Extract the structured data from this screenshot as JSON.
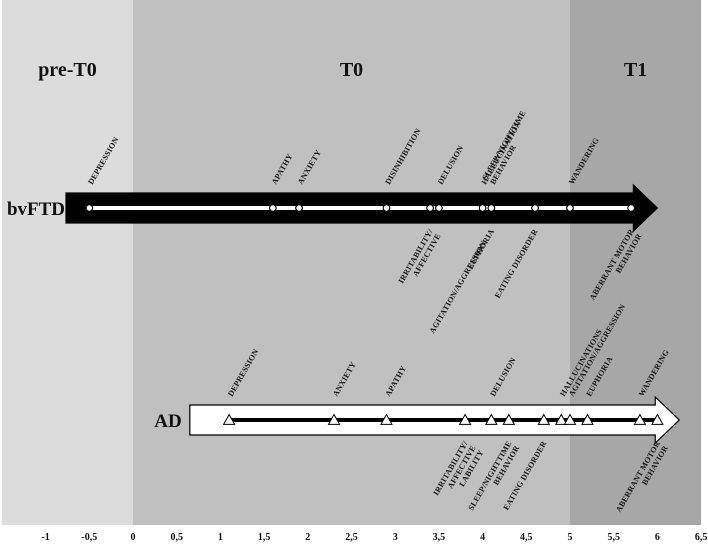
{
  "phases": [
    {
      "label": "pre-T0",
      "from": -1.5,
      "to": 0,
      "color": "#dcdcdc"
    },
    {
      "label": "T0",
      "from": 0,
      "to": 5,
      "color": "#c0c0c0"
    },
    {
      "label": "T1",
      "from": 5,
      "to": 6.5,
      "color": "#a7a7a7"
    }
  ],
  "axis": {
    "ticks": [
      -1,
      -0.5,
      0,
      0.5,
      1,
      1.5,
      2,
      2.5,
      3,
      3.5,
      4,
      4.5,
      5,
      5.5,
      6,
      6.5
    ],
    "tick_labels": [
      "-1",
      "-0,5",
      "0",
      "0,5",
      "1",
      "1,5",
      "2",
      "2,5",
      "3",
      "3,5",
      "4",
      "4,5",
      "5",
      "5,5",
      "6",
      "6,5"
    ]
  },
  "timelines": [
    {
      "name": "bvFTD",
      "arrow_fill": "#000000",
      "line_color": "#ffffff",
      "marker": "circle",
      "start": 0.75,
      "end": 6.0,
      "line_from": -0.5,
      "line_to": 5.7,
      "events": [
        {
          "x": -0.5,
          "label": [
            "DEPRESSION"
          ],
          "side": "above"
        },
        {
          "x": 1.6,
          "label": [
            "APATHY"
          ],
          "side": "above"
        },
        {
          "x": 1.9,
          "label": [
            "ANXIETY"
          ],
          "side": "above"
        },
        {
          "x": 2.9,
          "label": [
            "DISINHIBITION"
          ],
          "side": "above"
        },
        {
          "x": 3.4,
          "label": [
            "IRRITABILITY/",
            "AFFECTIVE"
          ],
          "side": "below"
        },
        {
          "x": 3.5,
          "label": [
            "DELUSION"
          ],
          "side": "above"
        },
        {
          "x": 4.0,
          "label": [
            "HALLUCINATION"
          ],
          "side": "above"
        },
        {
          "x": 4.1,
          "label": [
            "SLEEP/NIGHTTIME",
            "BEHAVIOR"
          ],
          "side": "above"
        },
        {
          "x": 4.1,
          "label": [
            "EUPHORIA"
          ],
          "side": "below"
        },
        {
          "x": 4.1,
          "label": [
            "AGITATION/AGGRESSION"
          ],
          "side": "below"
        },
        {
          "x": 4.6,
          "label": [
            "EATING DISORDER"
          ],
          "side": "below"
        },
        {
          "x": 5.0,
          "label": [
            "WANDERING"
          ],
          "side": "above"
        },
        {
          "x": 5.7,
          "label": [
            "ABERRANT MOTOR",
            "BEHAVIOR"
          ],
          "side": "below"
        }
      ]
    },
    {
      "name": "AD",
      "arrow_fill": "#ffffff",
      "line_color": "#000000",
      "marker": "triangle",
      "start": 0.65,
      "end": 6.25,
      "line_from": 1.1,
      "line_to": 6.0,
      "events": [
        {
          "x": 1.1,
          "label": [
            "DEPRESSION"
          ],
          "side": "above"
        },
        {
          "x": 2.3,
          "label": [
            "ANXIETY"
          ],
          "side": "above"
        },
        {
          "x": 2.9,
          "label": [
            "APATHY"
          ],
          "side": "above"
        },
        {
          "x": 3.8,
          "label": [
            "IRRITABILITY/",
            "AFFECTIVE",
            "LABILITY"
          ],
          "side": "below"
        },
        {
          "x": 4.1,
          "label": [
            "DELUSION"
          ],
          "side": "above"
        },
        {
          "x": 4.3,
          "label": [
            "SLEEP/NIGHTTIME",
            "BEHAVIOR"
          ],
          "side": "below"
        },
        {
          "x": 4.7,
          "label": [
            "EATING DISORDER"
          ],
          "side": "below"
        },
        {
          "x": 4.9,
          "label": [
            "HALLUCINATIONS"
          ],
          "side": "above"
        },
        {
          "x": 5.0,
          "label": [
            "AGITATION/AGGRESSION"
          ],
          "side": "above"
        },
        {
          "x": 5.2,
          "label": [
            "EUPHORIA"
          ],
          "side": "above"
        },
        {
          "x": 5.8,
          "label": [
            "WANDERING"
          ],
          "side": "above"
        },
        {
          "x": 6.0,
          "label": [
            "ABERRANT MOTOR",
            "BEHAVIOR"
          ],
          "side": "below"
        }
      ]
    }
  ]
}
